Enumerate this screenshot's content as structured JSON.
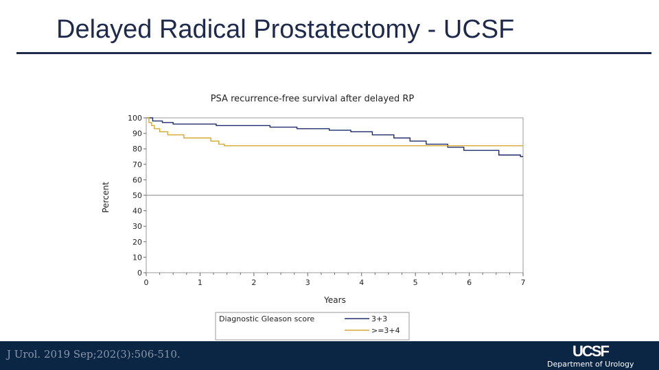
{
  "slide": {
    "title": "Delayed Radical Prostatectomy - UCSF",
    "citation": "J Urol. 2019 Sep;202(3):506-510.",
    "logo": "UCSF",
    "department": "Department of Urology"
  },
  "colors": {
    "title": "#1d2a4d",
    "footer": "#0b2545",
    "series_3_3": "#1f2a6b",
    "series_ge_3_4": "#d4a82e",
    "reference_line": "#808080"
  },
  "chart_data": {
    "type": "line",
    "step": true,
    "title": "PSA recurrence-free survival after delayed RP",
    "xlabel": "Years",
    "ylabel": "Percent",
    "xlim": [
      0,
      7
    ],
    "ylim": [
      0,
      100
    ],
    "xticks": [
      0,
      1,
      2,
      3,
      4,
      5,
      6,
      7
    ],
    "yticks": [
      0,
      10,
      20,
      30,
      40,
      50,
      60,
      70,
      80,
      90,
      100
    ],
    "reference_line_y": 50,
    "legend": {
      "placement": "bottom",
      "title": "Diagnostic Gleason score"
    },
    "series": [
      {
        "name": "3+3",
        "color": "#1f2a6b",
        "dashed_end": true,
        "x": [
          0,
          0.12,
          0.3,
          0.5,
          1.0,
          1.3,
          1.8,
          2.3,
          2.8,
          3.4,
          3.8,
          4.2,
          4.6,
          4.9,
          5.2,
          5.6,
          5.9,
          6.55,
          6.95
        ],
        "y": [
          100,
          98,
          97,
          96,
          96,
          95,
          95,
          94,
          93,
          92,
          91,
          89,
          87,
          85,
          83,
          81,
          79,
          76,
          75
        ]
      },
      {
        "name": ">=3+4",
        "color": "#d4a82e",
        "dashed_end": false,
        "x": [
          0,
          0.05,
          0.1,
          0.15,
          0.25,
          0.4,
          0.7,
          1.2,
          1.35,
          1.45,
          7.0
        ],
        "y": [
          100,
          97,
          95,
          93,
          91,
          89,
          87,
          85,
          83,
          82,
          82
        ]
      }
    ]
  }
}
